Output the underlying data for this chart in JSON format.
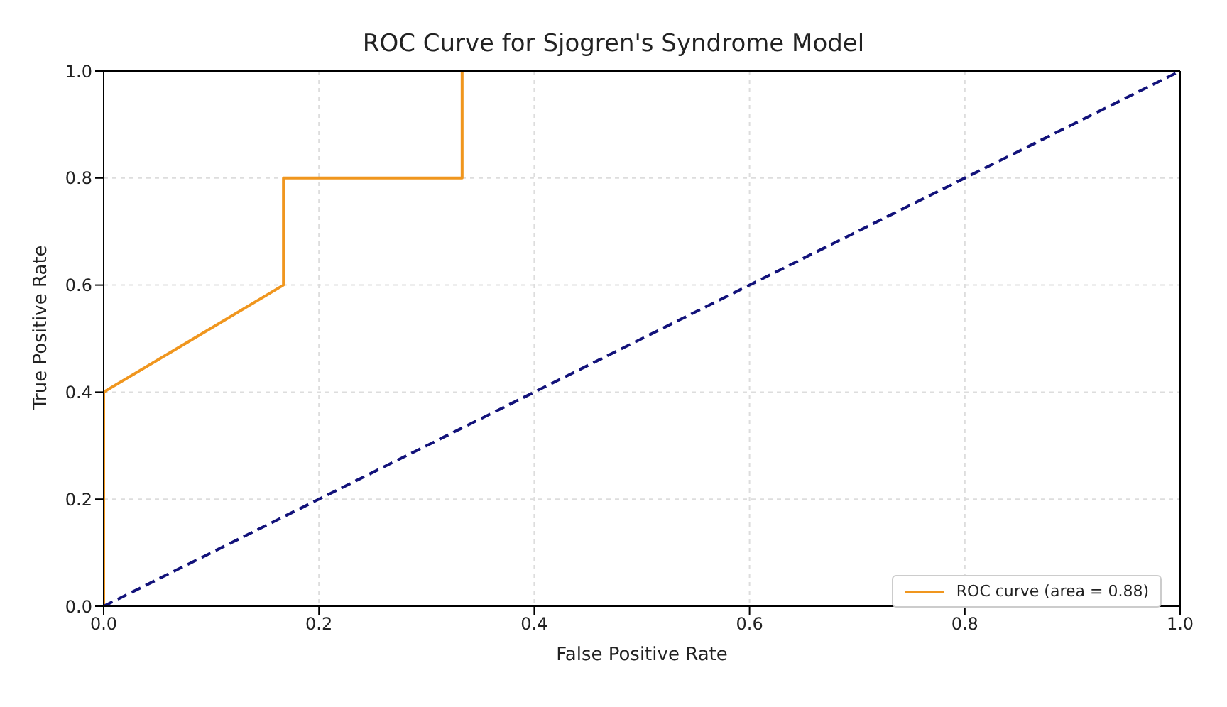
{
  "chart_data": {
    "type": "line",
    "title": "ROC Curve for Sjogren's Syndrome Model",
    "xlabel": "False Positive Rate",
    "ylabel": "True Positive Rate",
    "xlim": [
      0,
      1
    ],
    "ylim": [
      0,
      1
    ],
    "xticks": [
      {
        "value": 0,
        "label": "0.0"
      },
      {
        "value": 0.2,
        "label": "0.2"
      },
      {
        "value": 0.4,
        "label": "0.4"
      },
      {
        "value": 0.6,
        "label": "0.6"
      },
      {
        "value": 0.8,
        "label": "0.8"
      },
      {
        "value": 1,
        "label": "1.0"
      }
    ],
    "yticks": [
      {
        "value": 0,
        "label": "0.0"
      },
      {
        "value": 0.2,
        "label": "0.2"
      },
      {
        "value": 0.4,
        "label": "0.4"
      },
      {
        "value": 0.6,
        "label": "0.6"
      },
      {
        "value": 0.8,
        "label": "0.8"
      },
      {
        "value": 1,
        "label": "1.0"
      }
    ],
    "series": [
      {
        "name": "ROC curve (area = 0.88)",
        "color": "#f0961e",
        "x": [
          0,
          0,
          0.167,
          0.167,
          0.333,
          0.333,
          1
        ],
        "values": [
          0,
          0.4,
          0.6,
          0.8,
          0.8,
          1,
          1
        ],
        "line_style": "solid"
      },
      {
        "color": "#12127a",
        "x": [
          0,
          1
        ],
        "values": [
          0,
          1
        ],
        "line_style": "dashed"
      }
    ],
    "grid": true,
    "legend": "bottom right",
    "marker": "none"
  }
}
